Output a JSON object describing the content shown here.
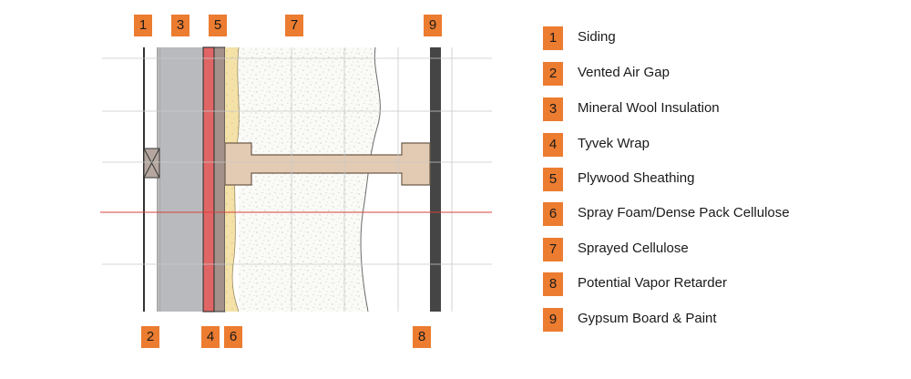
{
  "diagram": {
    "colors": {
      "badge": "#ec7c30",
      "mineral_wool": "#b9babd",
      "tyvek": "#e06666",
      "plywood": "#a3918a",
      "spray_foam": "#f4e2a8",
      "cellulose": "#fafaf7",
      "stud": "#e3cbb3",
      "gypsum": "#454545",
      "grid": "#c8c8c8",
      "red_line": "#d9403a"
    },
    "top_callouts": [
      "1",
      "3",
      "5",
      "7",
      "9"
    ],
    "bottom_callouts": [
      "2",
      "4",
      "6",
      "8"
    ]
  },
  "legend": [
    {
      "number": "1",
      "label": "Siding"
    },
    {
      "number": "2",
      "label": "Vented Air Gap"
    },
    {
      "number": "3",
      "label": "Mineral Wool Insulation"
    },
    {
      "number": "4",
      "label": "Tyvek Wrap"
    },
    {
      "number": "5",
      "label": "Plywood Sheathing"
    },
    {
      "number": "6",
      "label": "Spray Foam/Dense Pack Cellulose"
    },
    {
      "number": "7",
      "label": "Sprayed Cellulose"
    },
    {
      "number": "8",
      "label": "Potential Vapor Retarder"
    },
    {
      "number": "9",
      "label": "Gypsum Board & Paint"
    }
  ]
}
